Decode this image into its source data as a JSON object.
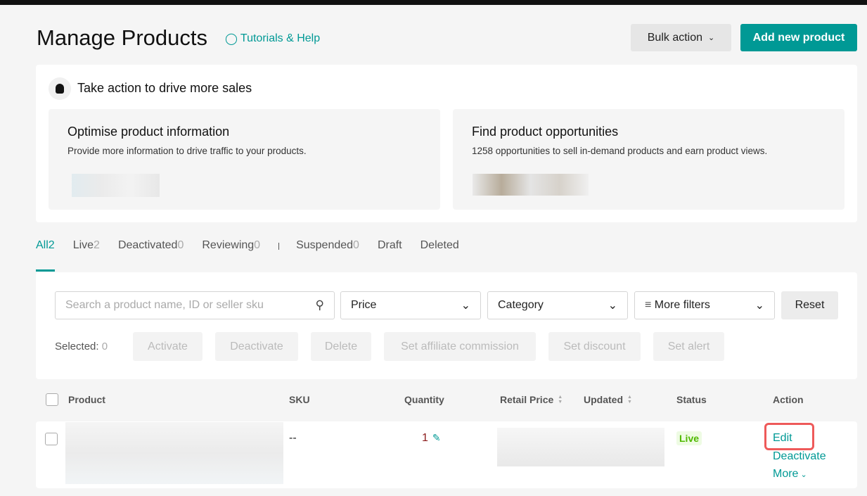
{
  "header": {
    "title": "Manage Products",
    "help_link": "Tutorials & Help",
    "bulk_action": "Bulk action",
    "add_product": "Add new product"
  },
  "insights": {
    "title": "Take action to drive more sales",
    "cards": [
      {
        "title": "Optimise product information",
        "desc": "Provide more information to drive traffic to your products."
      },
      {
        "title": "Find product opportunities",
        "desc": "1258 opportunities to sell in-demand products and earn product views."
      }
    ]
  },
  "tabs": [
    {
      "label": "All",
      "count": "2"
    },
    {
      "label": "Live",
      "count": "2"
    },
    {
      "label": "Deactivated",
      "count": "0"
    },
    {
      "label": "Reviewing",
      "count": "0"
    },
    {
      "label": "Suspended",
      "count": "0"
    },
    {
      "label": "Draft",
      "count": ""
    },
    {
      "label": "Deleted",
      "count": ""
    }
  ],
  "filters": {
    "search_placeholder": "Search a product name, ID or seller sku",
    "price": "Price",
    "category": "Category",
    "more": "More filters",
    "reset": "Reset"
  },
  "selection": {
    "label": "Selected:",
    "count": "0",
    "actions": [
      "Activate",
      "Deactivate",
      "Delete",
      "Set affiliate commission",
      "Set discount",
      "Set alert"
    ]
  },
  "table": {
    "columns": [
      "Product",
      "SKU",
      "Quantity",
      "Retail Price",
      "Updated",
      "Status",
      "Action"
    ],
    "rows": [
      {
        "sku": "--",
        "quantity": "1",
        "status": "Live",
        "actions": {
          "edit": "Edit",
          "deactivate": "Deactivate",
          "more": "More"
        }
      }
    ]
  },
  "colors": {
    "accent": "#009995",
    "highlight": "#ee5a5a",
    "live": "#4fb900"
  }
}
